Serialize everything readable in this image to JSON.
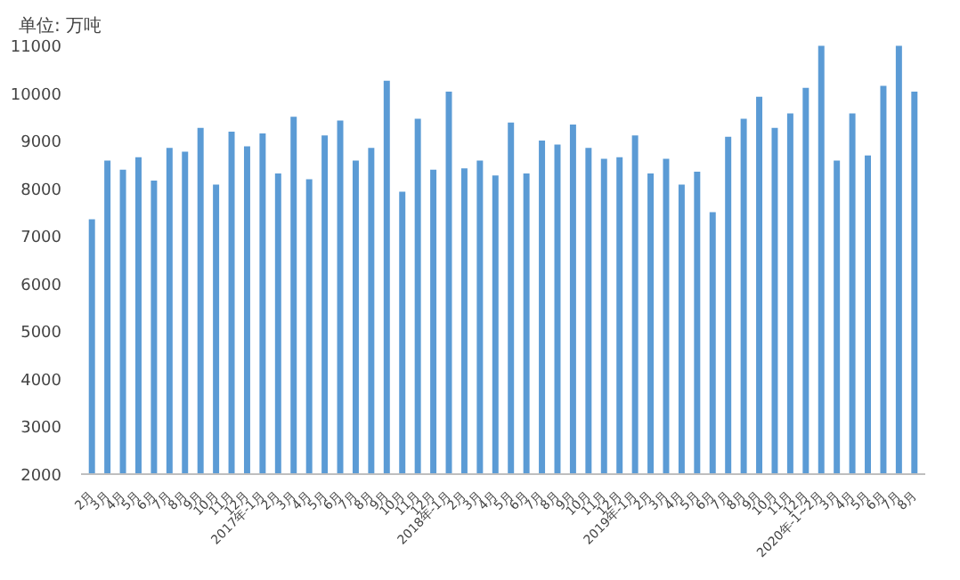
{
  "chart_data": {
    "type": "bar",
    "ylabel": "单位: 万吨",
    "categories": [
      "2月",
      "3月",
      "4月",
      "5月",
      "6月",
      "7月",
      "8月",
      "9月",
      "10月",
      "11月",
      "12月",
      "2017年-1月",
      "2月",
      "3月",
      "4月",
      "5月",
      "6月",
      "7月",
      "8月",
      "9月",
      "10月",
      "11月",
      "12月",
      "2018年-1月",
      "2月",
      "3月",
      "4月",
      "5月",
      "6月",
      "7月",
      "8月",
      "9月",
      "10月",
      "11月",
      "12月",
      "2019年-1月",
      "2月",
      "3月",
      "4月",
      "5月",
      "6月",
      "7月",
      "8月",
      "9月",
      "10月",
      "11月",
      "12月",
      "2020年-1~2月",
      "3月",
      "4月",
      "5月",
      "6月",
      "7月",
      "8月"
    ],
    "values": [
      7350,
      8580,
      8390,
      8650,
      8160,
      8850,
      8770,
      9270,
      8080,
      9190,
      8880,
      9150,
      8310,
      9500,
      8190,
      9110,
      9420,
      8580,
      8850,
      10260,
      7930,
      9460,
      8390,
      10030,
      8420,
      8580,
      8270,
      9380,
      8310,
      9000,
      8920,
      9340,
      8850,
      8620,
      8650,
      9110,
      8310,
      8620,
      8080,
      8350,
      7500,
      9080,
      9460,
      9920,
      9270,
      9570,
      10110,
      10990,
      8580,
      9570,
      8690,
      10150,
      10990,
      10030
    ],
    "color": "#5b9bd5",
    "ylim": [
      2000,
      11000
    ],
    "yticks": [
      2000,
      3000,
      4000,
      5000,
      6000,
      7000,
      8000,
      9000,
      10000,
      11000
    ],
    "grid": false
  }
}
